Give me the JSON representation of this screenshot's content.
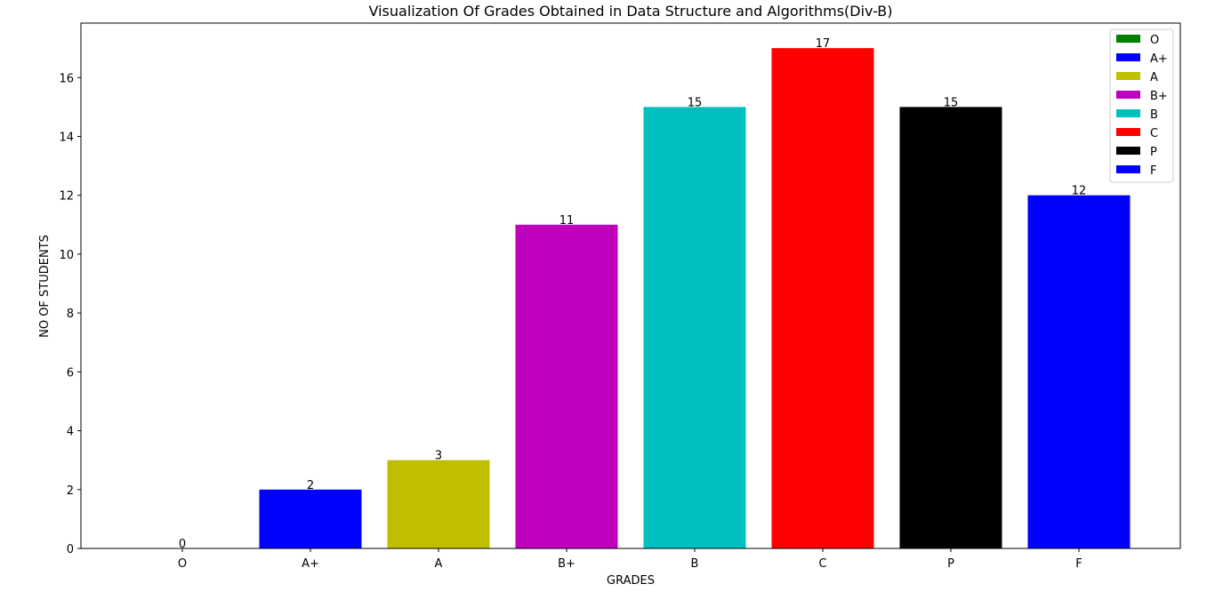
{
  "chart_data": {
    "type": "bar",
    "title": "Visualization Of Grades Obtained in Data Structure and Algorithms(Div-B)",
    "xlabel": "GRADES",
    "ylabel": "NO OF STUDENTS",
    "categories": [
      "O",
      "A+",
      "A",
      "B+",
      "B",
      "C",
      "P",
      "F"
    ],
    "values": [
      0,
      2,
      3,
      11,
      15,
      17,
      15,
      12
    ],
    "colors": [
      "#008000",
      "#0000ff",
      "#bfbf00",
      "#bf00bf",
      "#00bfbf",
      "#ff0000",
      "#000000",
      "#0000ff"
    ],
    "ylim": [
      0,
      17.85
    ],
    "yticks": [
      0,
      2,
      4,
      6,
      8,
      10,
      12,
      14,
      16
    ],
    "grid": false,
    "legend": {
      "position": "top-right",
      "entries": [
        "O",
        "A+",
        "A",
        "B+",
        "B",
        "C",
        "P",
        "F"
      ]
    }
  }
}
